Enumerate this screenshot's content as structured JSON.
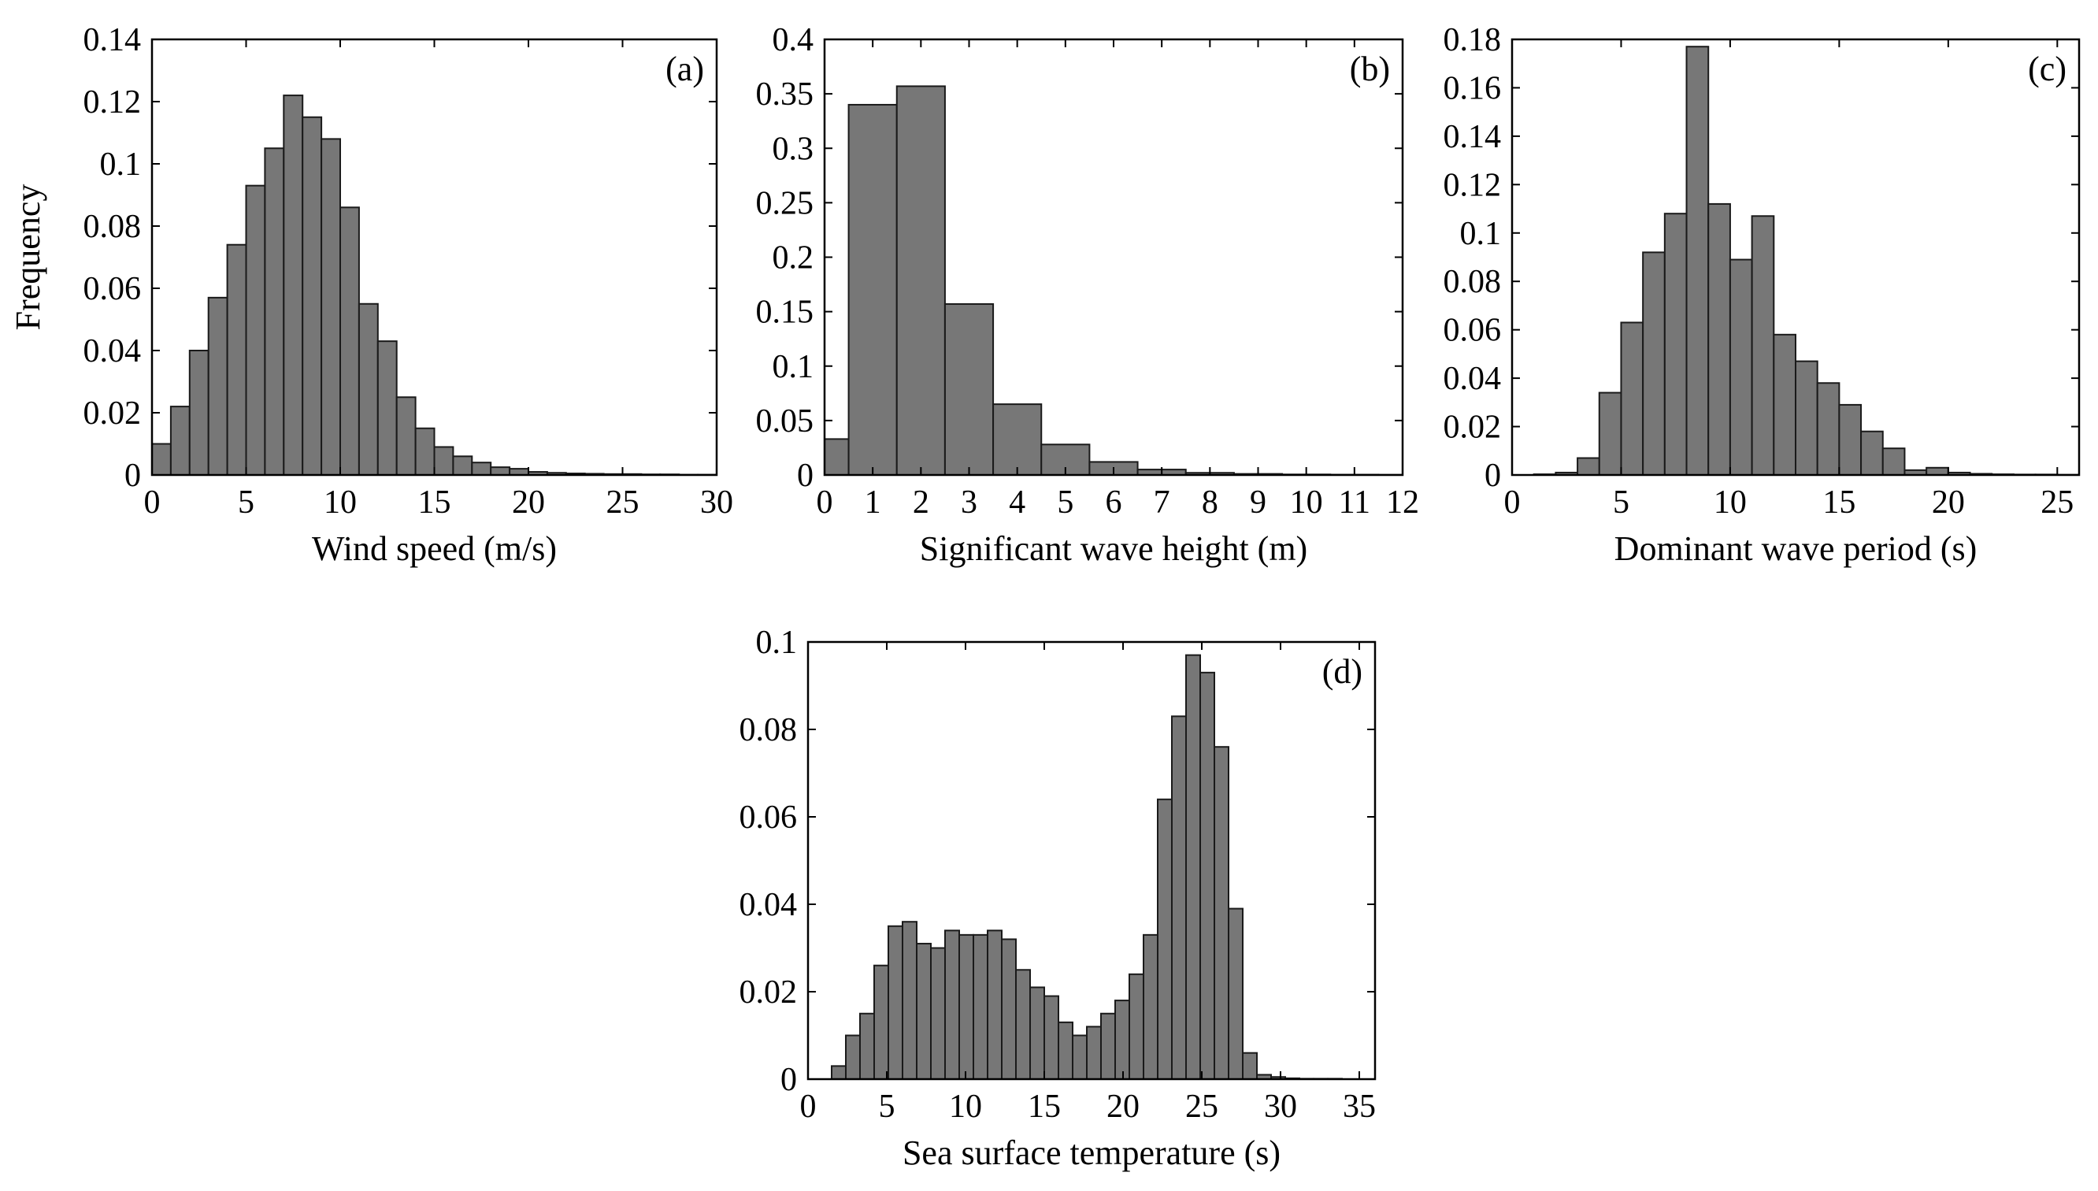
{
  "colors": {
    "bar_fill": "#777777",
    "bar_stroke": "#1a1a1a",
    "axis": "#000000",
    "background": "#ffffff"
  },
  "chart_data": [
    {
      "id": "a",
      "type": "bar",
      "panel_label": "(a)",
      "xlabel": "Wind speed (m/s)",
      "ylabel": "Frequency",
      "xlim": [
        0,
        30
      ],
      "ylim": [
        0,
        0.14
      ],
      "xticks": [
        0,
        5,
        10,
        15,
        20,
        25,
        30
      ],
      "yticks": [
        0,
        0.02,
        0.04,
        0.06,
        0.08,
        0.1,
        0.12,
        0.14
      ],
      "bin_width": 1,
      "bin_starts": [
        0,
        1,
        2,
        3,
        4,
        5,
        6,
        7,
        8,
        9,
        10,
        11,
        12,
        13,
        14,
        15,
        16,
        17,
        18,
        19,
        20,
        21,
        22,
        23,
        24,
        25,
        26,
        27,
        28,
        29
      ],
      "values": [
        0.01,
        0.022,
        0.04,
        0.057,
        0.074,
        0.093,
        0.105,
        0.122,
        0.115,
        0.108,
        0.086,
        0.055,
        0.043,
        0.025,
        0.015,
        0.009,
        0.006,
        0.004,
        0.0025,
        0.002,
        0.001,
        0.0007,
        0.0005,
        0.0004,
        0.0003,
        0.0003,
        0.0002,
        0.0002,
        0.0001,
        0.0001
      ]
    },
    {
      "id": "b",
      "type": "bar",
      "panel_label": "(b)",
      "xlabel": "Significant wave height (m)",
      "ylabel": "",
      "xlim": [
        0,
        12
      ],
      "ylim": [
        0,
        0.4
      ],
      "xticks": [
        0,
        1,
        2,
        3,
        4,
        5,
        6,
        7,
        8,
        9,
        10,
        11,
        12
      ],
      "yticks": [
        0,
        0.05,
        0.1,
        0.15,
        0.2,
        0.25,
        0.3,
        0.35,
        0.4
      ],
      "bin_starts": [
        0,
        0.5,
        1.5,
        2.5,
        3.5,
        4.5,
        5.5,
        6.5,
        7.5,
        8.5,
        9.5,
        10.5,
        11.5
      ],
      "bin_ends": [
        0.5,
        1.5,
        2.5,
        3.5,
        4.5,
        5.5,
        6.5,
        7.5,
        8.5,
        9.5,
        10.5,
        11.5,
        12
      ],
      "values": [
        0.033,
        0.34,
        0.357,
        0.157,
        0.065,
        0.028,
        0.012,
        0.005,
        0.002,
        0.001,
        0.0005,
        0.0003,
        0.0002
      ]
    },
    {
      "id": "c",
      "type": "bar",
      "panel_label": "(c)",
      "xlabel": "Dominant wave period (s)",
      "ylabel": "",
      "xlim": [
        0,
        26
      ],
      "ylim": [
        0,
        0.18
      ],
      "xticks": [
        0,
        5,
        10,
        15,
        20,
        25
      ],
      "yticks": [
        0,
        0.02,
        0.04,
        0.06,
        0.08,
        0.1,
        0.12,
        0.14,
        0.16,
        0.18
      ],
      "bin_width": 1,
      "bin_starts": [
        1,
        2,
        3,
        4,
        5,
        6,
        7,
        8,
        9,
        10,
        11,
        12,
        13,
        14,
        15,
        16,
        17,
        18,
        19,
        20,
        21,
        22,
        23,
        24,
        25
      ],
      "values": [
        0.0003,
        0.001,
        0.007,
        0.034,
        0.063,
        0.092,
        0.108,
        0.177,
        0.112,
        0.089,
        0.107,
        0.058,
        0.047,
        0.038,
        0.029,
        0.018,
        0.011,
        0.002,
        0.003,
        0.001,
        0.0005,
        0.0003,
        0.0002,
        0.0002,
        0.0001
      ]
    },
    {
      "id": "d",
      "type": "bar",
      "panel_label": "(d)",
      "xlabel": "Sea surface temperature (s)",
      "ylabel": "",
      "xlim": [
        0,
        36
      ],
      "ylim": [
        0,
        0.1
      ],
      "xticks": [
        0,
        5,
        10,
        15,
        20,
        25,
        30,
        35
      ],
      "yticks": [
        0,
        0.02,
        0.04,
        0.06,
        0.08,
        0.1
      ],
      "bin_width": 0.9,
      "bin_starts": [
        1.5,
        2.4,
        3.3,
        4.2,
        5.1,
        6.0,
        6.9,
        7.8,
        8.7,
        9.6,
        10.5,
        11.4,
        12.3,
        13.2,
        14.1,
        15.0,
        15.9,
        16.8,
        17.7,
        18.6,
        19.5,
        20.4,
        21.3,
        22.2,
        23.1,
        24.0,
        24.9,
        25.8,
        26.7,
        27.6,
        28.5,
        29.4,
        30.3,
        31.2,
        32.1,
        33.0
      ],
      "values": [
        0.003,
        0.01,
        0.015,
        0.026,
        0.035,
        0.036,
        0.031,
        0.03,
        0.034,
        0.033,
        0.033,
        0.034,
        0.032,
        0.025,
        0.021,
        0.019,
        0.013,
        0.01,
        0.012,
        0.015,
        0.018,
        0.024,
        0.033,
        0.064,
        0.083,
        0.097,
        0.093,
        0.076,
        0.039,
        0.006,
        0.001,
        0.0005,
        0.0002,
        0.0001,
        0.0001,
        0.0001
      ]
    }
  ]
}
